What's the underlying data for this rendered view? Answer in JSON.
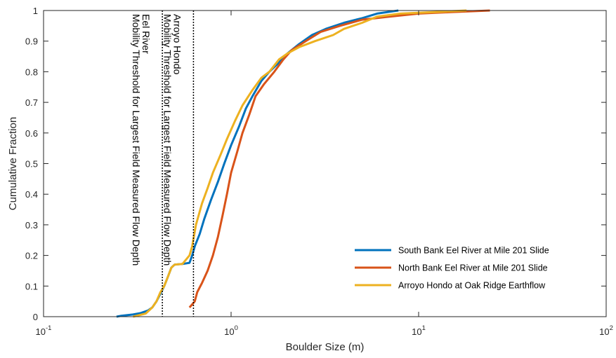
{
  "chart_data": {
    "type": "line",
    "title": "",
    "xlabel": "Boulder Size (m)",
    "ylabel": "Cumulative Fraction",
    "xscale": "log",
    "xlim": [
      0.1,
      100
    ],
    "ylim": [
      0,
      1
    ],
    "x_ticks": [
      {
        "value": 0.1,
        "base": "10",
        "exp": "-1"
      },
      {
        "value": 1,
        "base": "10",
        "exp": "0"
      },
      {
        "value": 10,
        "base": "10",
        "exp": "1"
      },
      {
        "value": 100,
        "base": "10",
        "exp": "2"
      }
    ],
    "y_ticks": [
      "0",
      "0.1",
      "0.2",
      "0.3",
      "0.4",
      "0.5",
      "0.6",
      "0.7",
      "0.8",
      "0.9",
      "1"
    ],
    "grid": false,
    "legend_position": "bottom-right",
    "series": [
      {
        "name": "South Bank Eel River at Mile 201 Slide",
        "color": "#0072BD",
        "points": [
          [
            0.245,
            0.0
          ],
          [
            0.26,
            0.003
          ],
          [
            0.3,
            0.007
          ],
          [
            0.33,
            0.012
          ],
          [
            0.36,
            0.02
          ],
          [
            0.38,
            0.03
          ],
          [
            0.4,
            0.05
          ],
          [
            0.42,
            0.075
          ],
          [
            0.44,
            0.1
          ],
          [
            0.46,
            0.13
          ],
          [
            0.48,
            0.16
          ],
          [
            0.5,
            0.17
          ],
          [
            0.55,
            0.172
          ],
          [
            0.6,
            0.176
          ],
          [
            0.62,
            0.2
          ],
          [
            0.64,
            0.23
          ],
          [
            0.68,
            0.27
          ],
          [
            0.72,
            0.32
          ],
          [
            0.78,
            0.38
          ],
          [
            0.85,
            0.44
          ],
          [
            0.92,
            0.5
          ],
          [
            1.0,
            0.56
          ],
          [
            1.1,
            0.62
          ],
          [
            1.2,
            0.68
          ],
          [
            1.3,
            0.72
          ],
          [
            1.45,
            0.77
          ],
          [
            1.6,
            0.8
          ],
          [
            1.8,
            0.83
          ],
          [
            2.0,
            0.86
          ],
          [
            2.3,
            0.89
          ],
          [
            2.7,
            0.92
          ],
          [
            3.2,
            0.94
          ],
          [
            4.0,
            0.96
          ],
          [
            5.0,
            0.975
          ],
          [
            6.0,
            0.99
          ],
          [
            7.8,
            1.0
          ]
        ]
      },
      {
        "name": "North Bank Eel River at Mile 201 Slide",
        "color": "#D95319",
        "points": [
          [
            0.6,
            0.03
          ],
          [
            0.62,
            0.04
          ],
          [
            0.64,
            0.05
          ],
          [
            0.66,
            0.08
          ],
          [
            0.7,
            0.11
          ],
          [
            0.75,
            0.15
          ],
          [
            0.8,
            0.2
          ],
          [
            0.85,
            0.26
          ],
          [
            0.9,
            0.33
          ],
          [
            0.95,
            0.4
          ],
          [
            1.0,
            0.47
          ],
          [
            1.08,
            0.54
          ],
          [
            1.15,
            0.6
          ],
          [
            1.25,
            0.66
          ],
          [
            1.35,
            0.72
          ],
          [
            1.5,
            0.76
          ],
          [
            1.7,
            0.8
          ],
          [
            1.9,
            0.84
          ],
          [
            2.1,
            0.87
          ],
          [
            2.5,
            0.9
          ],
          [
            3.0,
            0.93
          ],
          [
            3.8,
            0.95
          ],
          [
            5.0,
            0.97
          ],
          [
            7.0,
            0.98
          ],
          [
            10.0,
            0.99
          ],
          [
            15.0,
            0.995
          ],
          [
            24.0,
            1.0
          ]
        ]
      },
      {
        "name": "Arroyo Hondo at Oak Ridge Earthflow",
        "color": "#EDB120",
        "points": [
          [
            0.3,
            0.0
          ],
          [
            0.35,
            0.01
          ],
          [
            0.38,
            0.03
          ],
          [
            0.4,
            0.05
          ],
          [
            0.42,
            0.08
          ],
          [
            0.44,
            0.1
          ],
          [
            0.46,
            0.13
          ],
          [
            0.48,
            0.16
          ],
          [
            0.5,
            0.17
          ],
          [
            0.55,
            0.172
          ],
          [
            0.6,
            0.2
          ],
          [
            0.62,
            0.23
          ],
          [
            0.65,
            0.3
          ],
          [
            0.7,
            0.37
          ],
          [
            0.75,
            0.42
          ],
          [
            0.8,
            0.47
          ],
          [
            0.88,
            0.53
          ],
          [
            0.95,
            0.58
          ],
          [
            1.05,
            0.64
          ],
          [
            1.15,
            0.69
          ],
          [
            1.3,
            0.74
          ],
          [
            1.45,
            0.78
          ],
          [
            1.6,
            0.8
          ],
          [
            1.8,
            0.84
          ],
          [
            2.0,
            0.86
          ],
          [
            2.3,
            0.88
          ],
          [
            2.8,
            0.9
          ],
          [
            3.5,
            0.92
          ],
          [
            4.0,
            0.94
          ],
          [
            5.0,
            0.96
          ],
          [
            6.0,
            0.98
          ],
          [
            8.0,
            0.99
          ],
          [
            12.0,
            0.995
          ],
          [
            18.0,
            1.0
          ]
        ]
      }
    ],
    "threshold_lines": [
      {
        "x": 0.43,
        "label_lines": [
          "Mobility Threshold for Largest Field Measured Flow Depth",
          "Eel River"
        ]
      },
      {
        "x": 0.63,
        "label_lines": [
          "Mobility Threshold for Largest Field Measured Flow Depth",
          "Arroyo Hondo"
        ]
      }
    ]
  }
}
